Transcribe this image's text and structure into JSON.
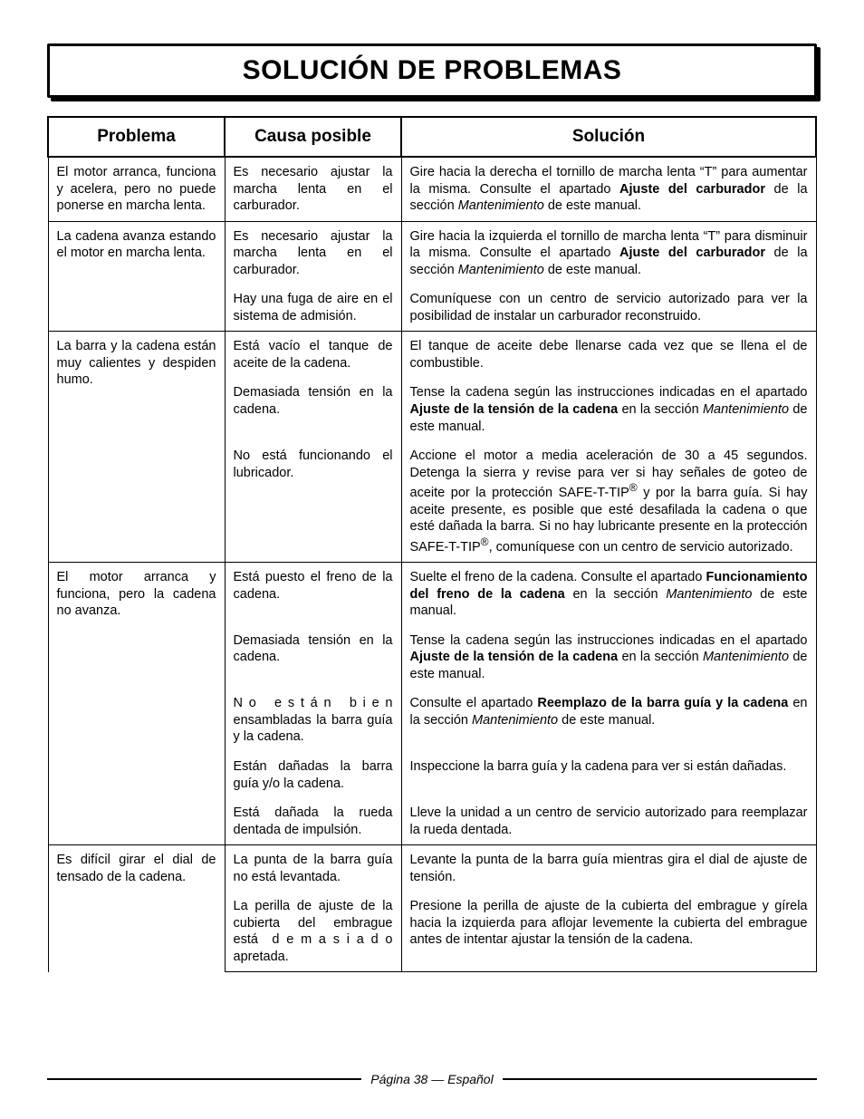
{
  "title": "SOLUCIÓN DE PROBLEMAS",
  "columns": {
    "problem": "Problema",
    "cause": "Causa posible",
    "solution": "Solución"
  },
  "footer": "Página 38  — Español",
  "rows": [
    {
      "problem": "El motor arranca, funciona y acelera, pero no puede ponerse en marcha lenta.",
      "cause": "Es necesario ajustar la marcha lenta en el carburador.",
      "solution_html": "Gire hacia la derecha el tornillo de marcha lenta “T” para aumentar la misma. Consulte el apartado <span class=\"b\">Ajuste del carburador</span> de la sección <span class=\"i\">Mantenimiento</span> de este manual."
    },
    {
      "problem": "La cadena avanza estando el motor en marcha lenta.",
      "cause": "Es necesario ajustar la marcha lenta en el carburador.",
      "solution_html": "Gire hacia la izquierda el tornillo de marcha lenta “T” para disminuir la misma. Consulte el apartado <span class=\"b\">Ajuste del carburador</span> de la sección <span class=\"i\">Mantenimiento</span> de este manual."
    },
    {
      "problem_cont": true,
      "cause": "Hay una fuga de aire en el sistema de admisión.",
      "solution_html": "Comuníquese con un centro de servicio autorizado para ver la posibilidad de instalar un carburador reconstruido."
    },
    {
      "problem": "La barra y la cadena están muy calientes y despiden humo.",
      "cause": "Está vacío el tanque de aceite de la cadena.",
      "solution_html": "El tanque de aceite debe llenarse cada vez que se llena el de combustible."
    },
    {
      "problem_cont": true,
      "cause": "Demasiada tensión en la cadena.",
      "solution_html": "Tense la cadena según las instrucciones indicadas en el apartado <span class=\"b\">Ajuste de la tensión de la cadena</span> en la sección <span class=\"i\">Mantenimiento</span> de este manual."
    },
    {
      "problem_cont": true,
      "cause": "No está funcionando el lubricador.",
      "solution_html": "Accione el motor a media aceleración de 30 a 45 segundos. Detenga la sierra y revise para ver si hay señales de goteo de aceite por la protección SAFE-T-TIP<sup>®</sup> y por la barra guía. Si hay aceite presente, es posible que esté desafilada la cadena o que esté dañada la barra. Si no hay lubricante presente en la protección SAFE-T-TIP<sup>®</sup>, comuníquese con un centro de servicio autorizado."
    },
    {
      "problem": "El motor arranca y funciona, pero la cadena no avanza.",
      "cause": "Está puesto el freno de la cadena.",
      "solution_html": "Suelte el freno de la cadena. Consulte el apartado <span class=\"b\">Funcionamiento del freno de la cadena</span> en la sección <span class=\"i\">Mantenimiento</span> de este manual."
    },
    {
      "problem_cont": true,
      "cause": "Demasiada tensión en la cadena.",
      "solution_html": "Tense la cadena según las instrucciones indicadas en el apartado <span class=\"b\">Ajuste de la tensión de la cadena</span> en la sección <span class=\"i\">Mantenimiento</span> de este manual."
    },
    {
      "problem_cont": true,
      "cause_html": "N o&nbsp;&nbsp;&nbsp;e s t á n&nbsp;&nbsp;&nbsp;b i e n ensambladas la barra guía y la cadena.",
      "solution_html": "Consulte el apartado <span class=\"b\">Reemplazo de la barra guía y la cadena</span> en la sección <span class=\"i\">Mantenimiento</span> de este manual."
    },
    {
      "problem_cont": true,
      "cause": "Están dañadas la barra guía y/o la cadena.",
      "solution_html": "Inspeccione la barra guía y la cadena para ver si están dañadas."
    },
    {
      "problem_cont": true,
      "cause": "Está dañada la rueda dentada de impulsión.",
      "solution_html": "Lleve la unidad a un centro de servicio autorizado para reemplazar la rueda dentada."
    },
    {
      "problem": "Es difícil girar el dial de tensado de la cadena.",
      "cause": "La punta de la barra guía no está levantada.",
      "solution_html": "Levante la punta de la barra guía mientras gira el dial de ajuste de tensión."
    },
    {
      "problem_cont": true,
      "cause_html": "La perilla de ajuste de la cubierta del embrague está&nbsp;&nbsp;d e m a s i a d o apretada.",
      "solution_html": "Presione la perilla de ajuste de la cubierta del embrague y gírela hacia la izquierda para aflojar levemente la cubierta del embrague antes de intentar ajustar la tensión de la cadena."
    }
  ]
}
